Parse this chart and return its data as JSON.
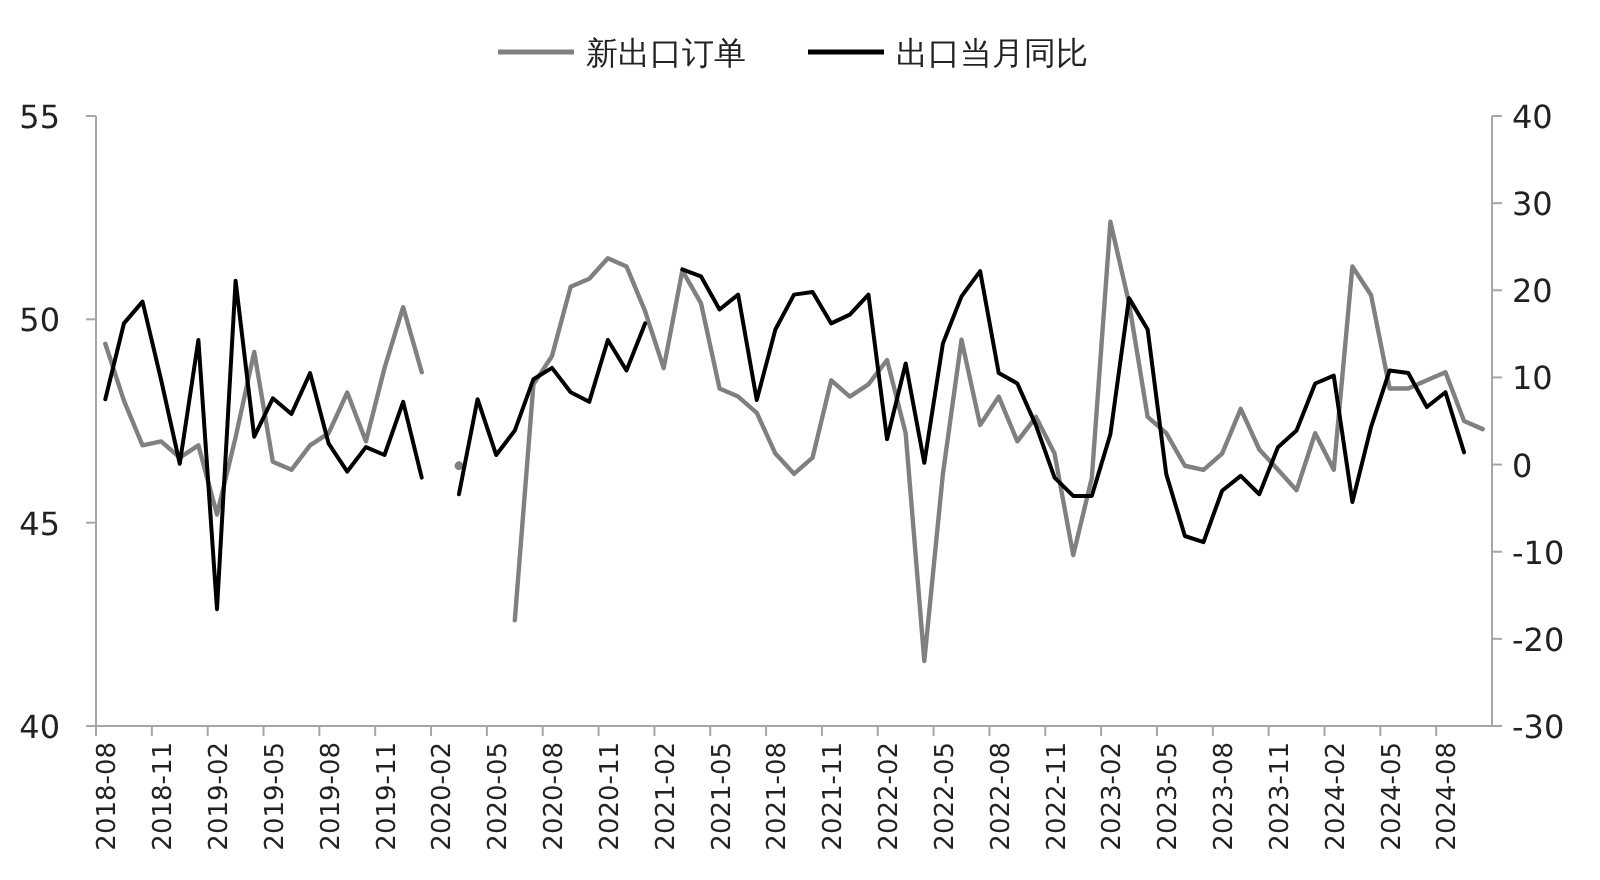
{
  "chart_data": {
    "type": "line",
    "categories": [
      "2018-08",
      null,
      null,
      "2018-11",
      null,
      null,
      "2019-02",
      null,
      null,
      "2019-05",
      null,
      null,
      "2019-08",
      null,
      null,
      "2019-11",
      null,
      null,
      "2020-02",
      null,
      null,
      "2020-05",
      null,
      null,
      "2020-08",
      null,
      null,
      "2020-11",
      null,
      null,
      "2021-02",
      null,
      null,
      "2021-05",
      null,
      null,
      "2021-08",
      null,
      null,
      "2021-11",
      null,
      null,
      "2022-02",
      null,
      null,
      "2022-05",
      null,
      null,
      "2022-08",
      null,
      null,
      "2022-11",
      null,
      null,
      "2023-02",
      null,
      null,
      "2023-05",
      null,
      null,
      "2023-08",
      null,
      null,
      "2023-11",
      null,
      null,
      "2024-02",
      null,
      null,
      "2024-05",
      null,
      null,
      "2024-08",
      null,
      null
    ],
    "series": [
      {
        "name": "新出口订单",
        "color": "#808080",
        "values": [
          49.4,
          48.0,
          46.9,
          47.0,
          46.6,
          46.9,
          45.2,
          47.1,
          49.2,
          46.5,
          46.3,
          46.9,
          47.2,
          48.2,
          47.0,
          48.8,
          50.3,
          48.7,
          null,
          46.4,
          null,
          null,
          42.6,
          48.4,
          49.1,
          50.8,
          51.0,
          51.5,
          51.3,
          50.2,
          48.8,
          51.2,
          50.4,
          48.3,
          48.1,
          47.7,
          46.7,
          46.2,
          46.6,
          48.5,
          48.1,
          48.4,
          49.0,
          47.2,
          41.6,
          46.2,
          49.5,
          47.4,
          48.1,
          47.0,
          47.6,
          46.7,
          44.2,
          46.1,
          52.4,
          50.4,
          47.6,
          47.2,
          46.4,
          46.3,
          46.7,
          47.8,
          46.8,
          46.3,
          45.8,
          47.2,
          46.3,
          51.3,
          50.6,
          48.3,
          48.3,
          48.5,
          48.7,
          47.5,
          47.3
        ]
      },
      {
        "name": "出口当月同比",
        "color": "#000000",
        "axis": "y2",
        "values": [
          7.5,
          16.2,
          18.7,
          9.7,
          0.1,
          14.3,
          -16.6,
          21.1,
          3.2,
          7.6,
          5.8,
          10.5,
          2.4,
          -0.8,
          2.0,
          1.1,
          7.2,
          -1.5,
          null,
          -3.4,
          7.5,
          1.1,
          3.9,
          9.8,
          11.1,
          8.3,
          7.2,
          14.3,
          10.8,
          16.2,
          null,
          22.4,
          21.6,
          17.8,
          19.5,
          7.4,
          15.5,
          19.5,
          19.8,
          16.2,
          17.2,
          19.5,
          2.9,
          11.6,
          0.2,
          13.9,
          19.3,
          22.2,
          10.5,
          9.3,
          4.5,
          -1.5,
          -3.6,
          -3.6,
          3.5,
          19.1,
          15.5,
          -1.1,
          -8.2,
          -8.9,
          -3.0,
          -1.3,
          -3.4,
          2.0,
          3.9,
          9.3,
          10.2,
          -4.3,
          4.3,
          10.8,
          10.5,
          6.6,
          8.3,
          1.4,
          null
        ]
      }
    ],
    "ylim": [
      40,
      55
    ],
    "yticks": [
      40,
      45,
      50,
      55
    ],
    "y2lim": [
      -30,
      40
    ],
    "y2ticks": [
      -30,
      -20,
      -10,
      0,
      10,
      20,
      30,
      40
    ],
    "legend": "top",
    "grid": false,
    "marker": "none",
    "line_style": "solid"
  }
}
